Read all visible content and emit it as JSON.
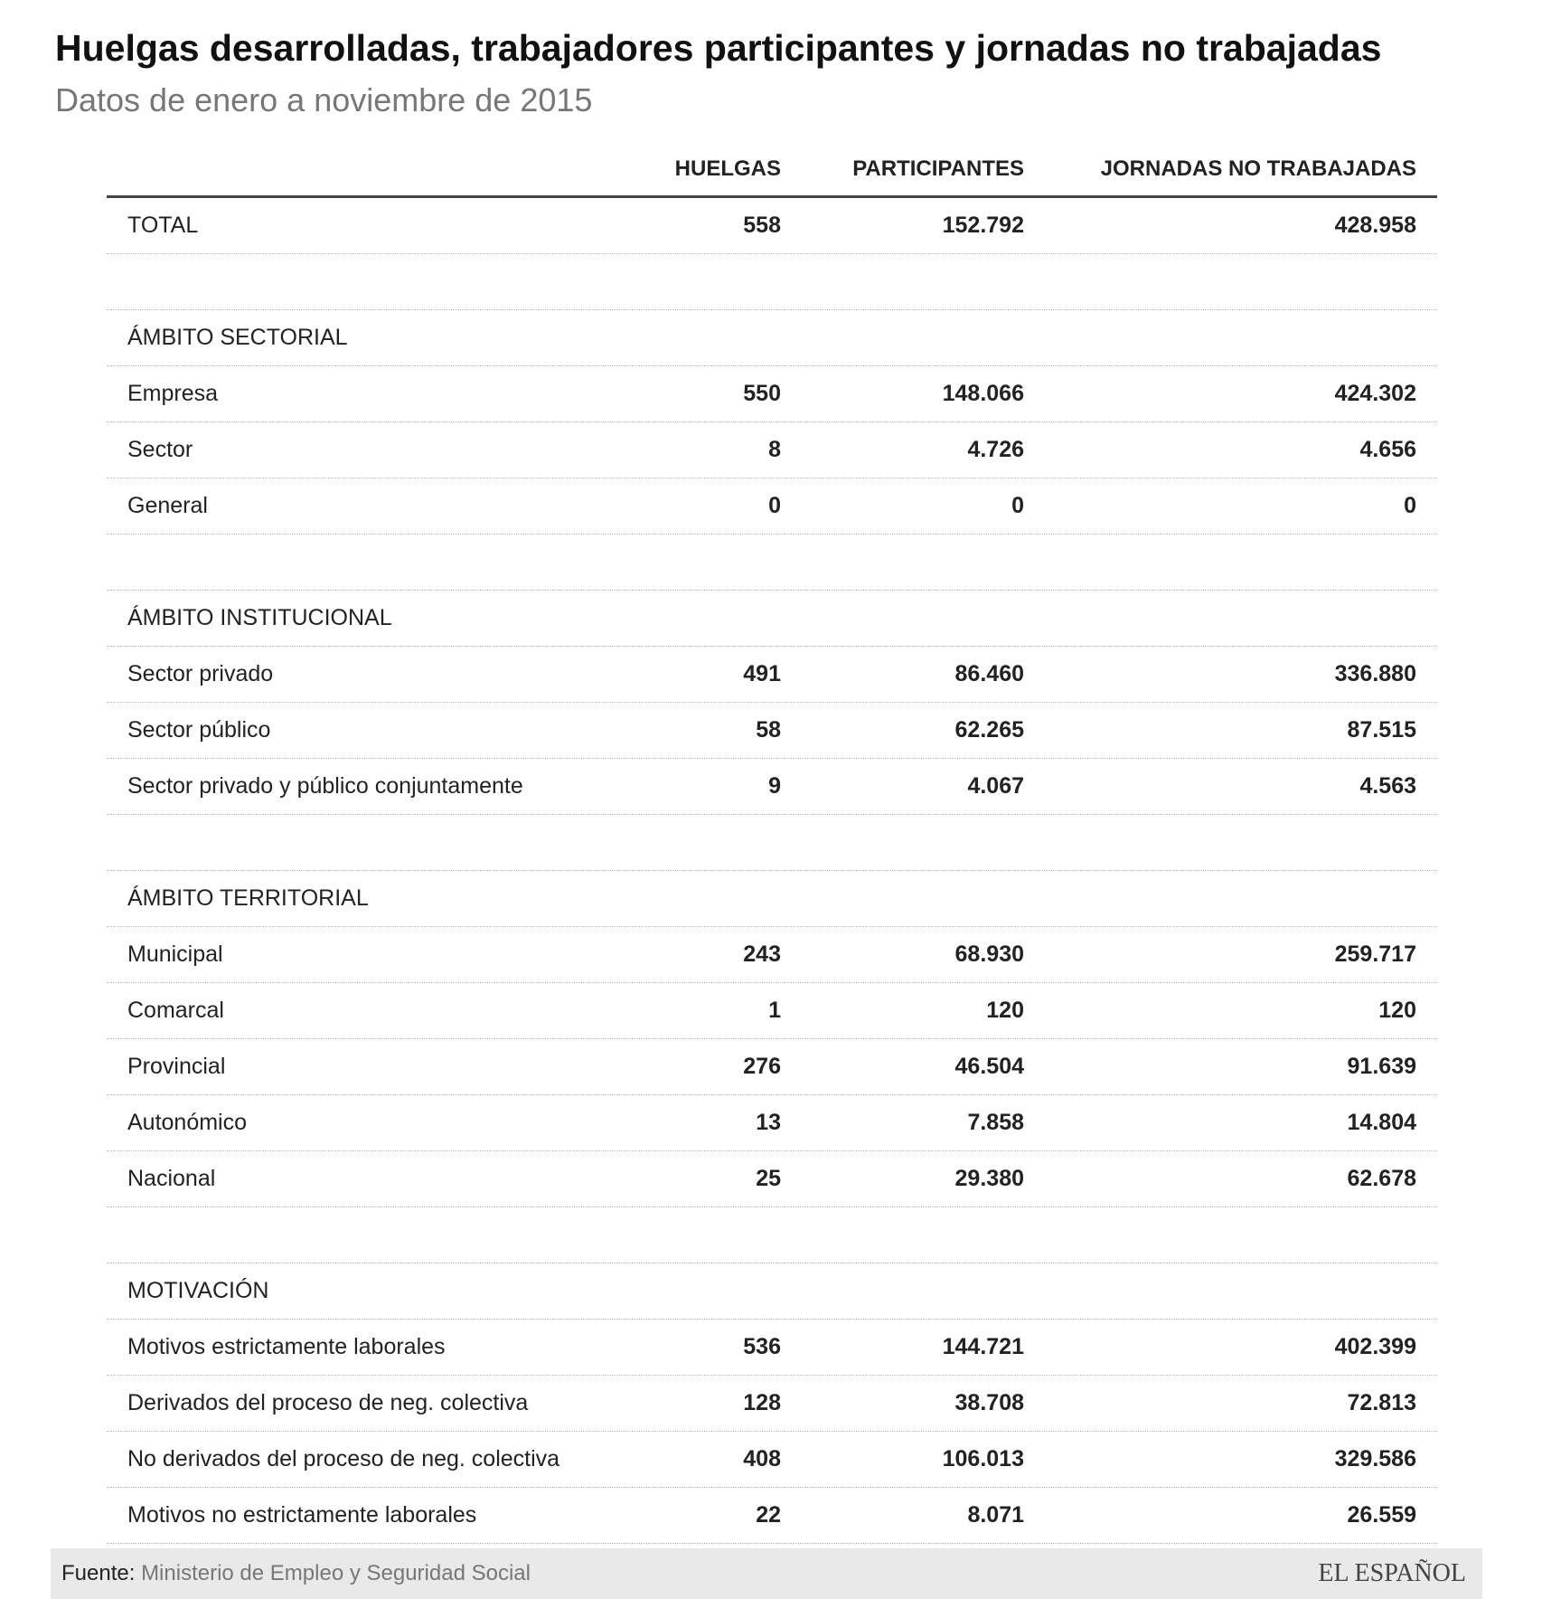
{
  "header": {
    "title": "Huelgas desarrolladas, trabajadores participantes y jornadas no trabajadas",
    "subtitle": "Datos de enero a noviembre de 2015"
  },
  "table": {
    "columns": [
      "HUELGAS",
      "PARTICIPANTES",
      "JORNADAS NO TRABAJADAS"
    ],
    "total": {
      "label": "TOTAL",
      "cells": [
        "558",
        "152.792",
        "428.958"
      ]
    },
    "sections": [
      {
        "heading": "ÁMBITO SECTORIAL",
        "rows": [
          {
            "label": "Empresa",
            "cells": [
              "550",
              "148.066",
              "424.302"
            ]
          },
          {
            "label": "Sector",
            "cells": [
              "8",
              "4.726",
              "4.656"
            ]
          },
          {
            "label": "General",
            "cells": [
              "0",
              "0",
              "0"
            ]
          }
        ]
      },
      {
        "heading": "ÁMBITO INSTITUCIONAL",
        "rows": [
          {
            "label": "Sector privado",
            "cells": [
              "491",
              "86.460",
              "336.880"
            ]
          },
          {
            "label": "Sector público",
            "cells": [
              "58",
              "62.265",
              "87.515"
            ]
          },
          {
            "label": "Sector privado y público conjuntamente",
            "cells": [
              "9",
              "4.067",
              "4.563"
            ]
          }
        ]
      },
      {
        "heading": "ÁMBITO TERRITORIAL",
        "rows": [
          {
            "label": "Municipal",
            "cells": [
              "243",
              "68.930",
              "259.717"
            ]
          },
          {
            "label": "Comarcal",
            "cells": [
              "1",
              "120",
              "120"
            ]
          },
          {
            "label": "Provincial",
            "cells": [
              "276",
              "46.504",
              "91.639"
            ]
          },
          {
            "label": "Autonómico",
            "cells": [
              "13",
              "7.858",
              "14.804"
            ]
          },
          {
            "label": "Nacional",
            "cells": [
              "25",
              "29.380",
              "62.678"
            ]
          }
        ]
      },
      {
        "heading": "MOTIVACIÓN",
        "rows": [
          {
            "label": "Motivos estrictamente laborales",
            "cells": [
              "536",
              "144.721",
              "402.399"
            ]
          },
          {
            "label": "Derivados del proceso de neg. colectiva",
            "cells": [
              "128",
              "38.708",
              "72.813"
            ]
          },
          {
            "label": "No derivados del proceso de neg. colectiva",
            "cells": [
              "408",
              "106.013",
              "329.586"
            ]
          },
          {
            "label": "Motivos no estrictamente laborales",
            "cells": [
              "22",
              "8.071",
              "26.559"
            ]
          }
        ]
      }
    ]
  },
  "footer": {
    "source_label": "Fuente:",
    "source": "Ministerio de Empleo y Seguridad Social",
    "logo": "EL ESPAÑOL"
  }
}
